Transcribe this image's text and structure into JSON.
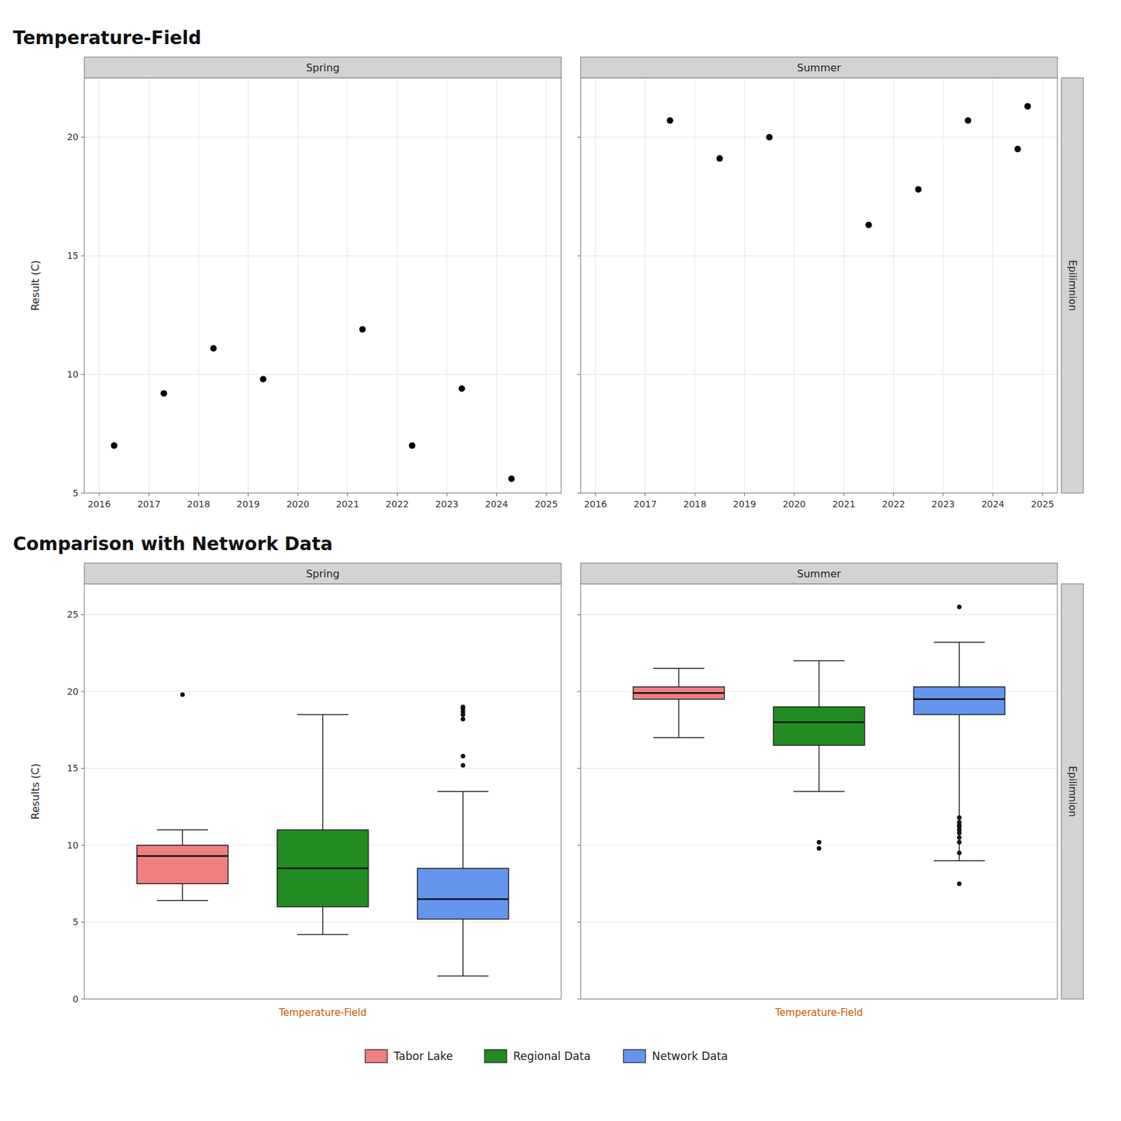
{
  "chart_data": [
    {
      "type": "scatter",
      "title": "Spring",
      "annotations": [
        "Temperature-Field"
      ],
      "ylabel": "Result (C)",
      "color": "black",
      "grid": true,
      "x": [
        2016.3,
        2017.3,
        2018.3,
        2019.3,
        2021.3,
        2022.3,
        2023.3,
        2024.3
      ],
      "values": [
        7.0,
        9.2,
        11.1,
        9.8,
        11.9,
        7.0,
        9.4,
        5.6
      ],
      "xlim": [
        2015.7,
        2025.3
      ],
      "xticks": [
        2016,
        2017,
        2018,
        2019,
        2020,
        2021,
        2022,
        2023,
        2024,
        2025
      ],
      "ylim": [
        5,
        22.5
      ],
      "yticks": [
        5,
        10,
        15,
        20
      ]
    },
    {
      "type": "scatter",
      "title": "Summer",
      "annotations": [
        "Epilimnion"
      ],
      "color": "black",
      "grid": true,
      "tick_labels": "x",
      "x": [
        2017.5,
        2018.5,
        2019.5,
        2021.5,
        2022.5,
        2023.5,
        2024.5,
        2024.7
      ],
      "values": [
        20.7,
        19.1,
        20.0,
        16.3,
        17.8,
        20.7,
        19.5,
        21.3
      ],
      "xlim": [
        2015.7,
        2025.3
      ],
      "xticks": [
        2016,
        2017,
        2018,
        2019,
        2020,
        2021,
        2022,
        2023,
        2024,
        2025
      ],
      "ylim": [
        5,
        22.5
      ],
      "yticks": [
        5,
        10,
        15,
        20
      ]
    },
    {
      "type": "box",
      "title": "Spring",
      "annotations": [
        "Comparison with Network Data"
      ],
      "ylabel": "Results (C)",
      "grid": true,
      "legend": "bottom",
      "categories": [
        "Temperature-Field"
      ],
      "ylim": [
        0,
        27
      ],
      "yticks": [
        0,
        5,
        10,
        15,
        20,
        25
      ],
      "series": [
        {
          "name": "Tabor Lake",
          "color": "#F08080",
          "q1": 7.5,
          "median": 9.3,
          "q3": 10.0,
          "whislo": 6.4,
          "whishi": 11.0,
          "fliers": [
            19.8
          ]
        },
        {
          "name": "Regional Data",
          "color": "#228B22",
          "q1": 6.0,
          "median": 8.5,
          "q3": 11.0,
          "whislo": 4.2,
          "whishi": 18.5,
          "fliers": []
        },
        {
          "name": "Network Data",
          "color": "#6495ED",
          "q1": 5.2,
          "median": 6.5,
          "q3": 8.5,
          "whislo": 1.5,
          "whishi": 13.5,
          "fliers": [
            15.2,
            15.8,
            18.5,
            19.0,
            18.7,
            18.2,
            18.9
          ]
        }
      ]
    },
    {
      "type": "box",
      "title": "Summer",
      "annotations": [
        "Epilimnion"
      ],
      "grid": true,
      "tick_labels": "x",
      "categories": [
        "Temperature-Field"
      ],
      "ylim": [
        0,
        27
      ],
      "yticks": [
        0,
        5,
        10,
        15,
        20,
        25
      ],
      "series": [
        {
          "name": "Tabor Lake",
          "color": "#F08080",
          "q1": 19.5,
          "median": 19.9,
          "q3": 20.3,
          "whislo": 17.0,
          "whishi": 21.5,
          "fliers": []
        },
        {
          "name": "Regional Data",
          "color": "#228B22",
          "q1": 16.5,
          "median": 18.0,
          "q3": 19.0,
          "whislo": 13.5,
          "whishi": 22.0,
          "fliers": [
            9.8,
            10.2
          ]
        },
        {
          "name": "Network Data",
          "color": "#6495ED",
          "q1": 18.5,
          "median": 19.5,
          "q3": 20.3,
          "whislo": 9.0,
          "whishi": 23.2,
          "fliers": [
            25.5,
            11.0,
            11.5,
            11.2,
            10.8,
            11.3,
            10.5,
            11.8,
            10.2,
            9.5,
            7.5
          ]
        }
      ]
    }
  ]
}
